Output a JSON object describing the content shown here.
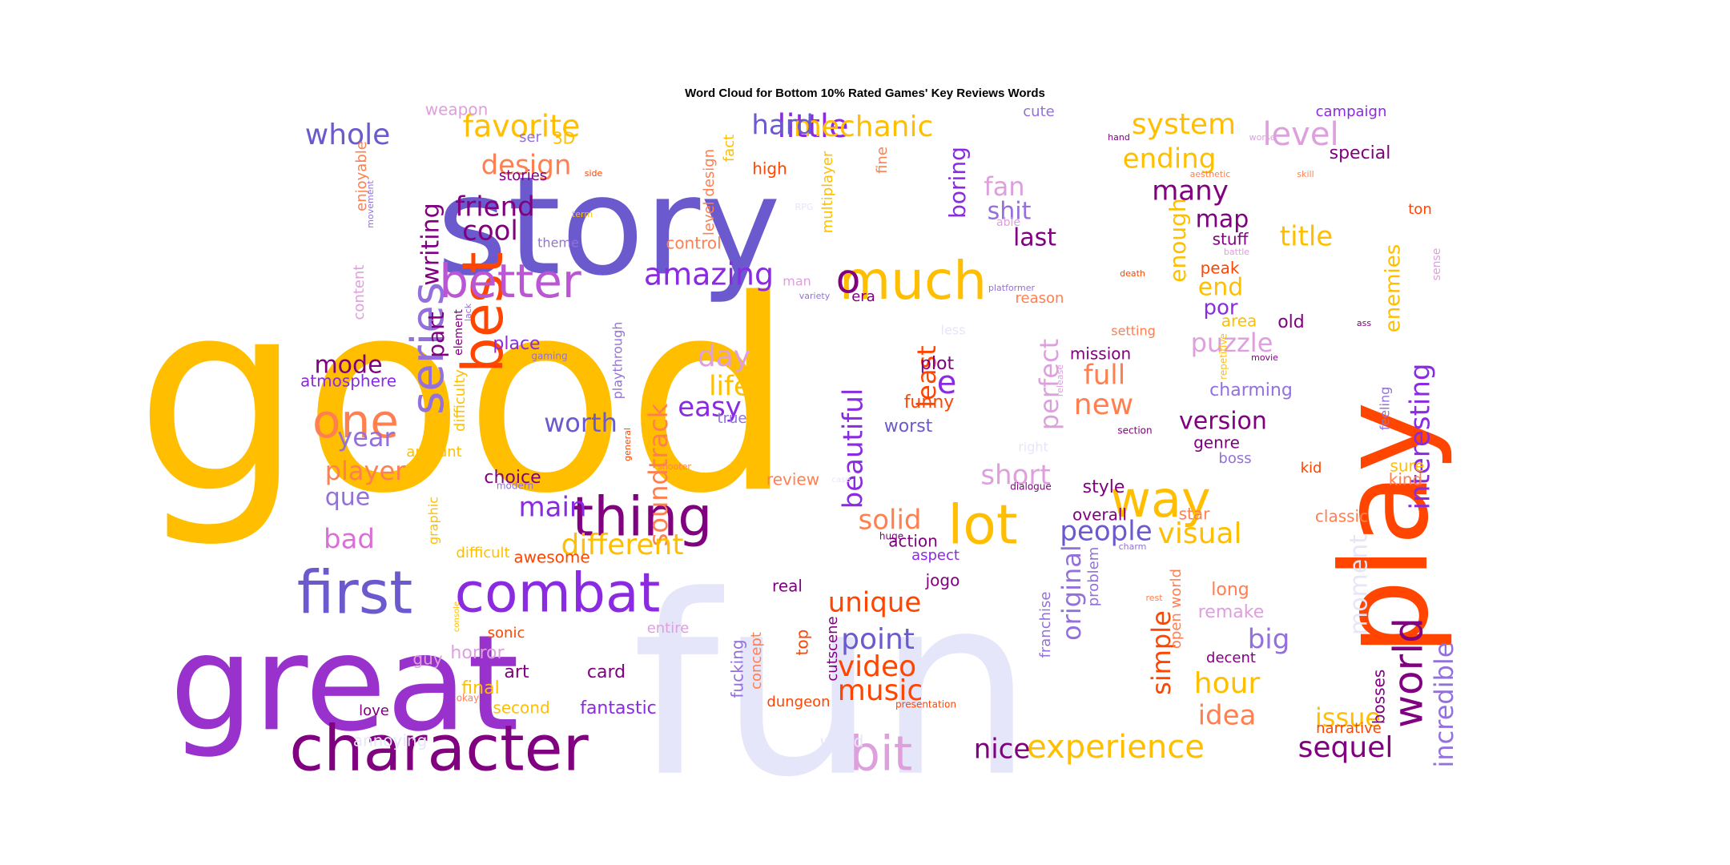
{
  "chart_data": {
    "type": "wordcloud",
    "title": "Word Cloud for Bottom 10% Rated Games' Key Reviews Words",
    "palette": [
      "#FFBF00",
      "#6A5ACD",
      "#FF4500",
      "#8A2BE2",
      "#800080",
      "#DDA0DD",
      "#E6E6FA",
      "#FF7F50"
    ],
    "words": [
      {
        "text": "good",
        "weight": 100,
        "color": "#FFBF00"
      },
      {
        "text": "fun",
        "weight": 92,
        "color": "#E6E6FA"
      },
      {
        "text": "story",
        "weight": 70,
        "color": "#6A5ACD"
      },
      {
        "text": "great",
        "weight": 63,
        "color": "#9932CC"
      },
      {
        "text": "play",
        "weight": 55,
        "color": "#FF4500"
      },
      {
        "text": "character",
        "weight": 34,
        "color": "#800080"
      },
      {
        "text": "best",
        "weight": 28,
        "color": "#FF4500"
      },
      {
        "text": "first",
        "weight": 30,
        "color": "#6A5ACD"
      },
      {
        "text": "combat",
        "weight": 28,
        "color": "#8A2BE2"
      },
      {
        "text": "thing",
        "weight": 27,
        "color": "#800080"
      },
      {
        "text": "much",
        "weight": 27,
        "color": "#FFBF00"
      },
      {
        "text": "lot",
        "weight": 27,
        "color": "#FFBF00"
      },
      {
        "text": "way",
        "weight": 25,
        "color": "#FFBF00"
      },
      {
        "text": "better",
        "weight": 24,
        "color": "#BA55D3"
      },
      {
        "text": "bit",
        "weight": 24,
        "color": "#DDA0DD"
      },
      {
        "text": "series",
        "weight": 23,
        "color": "#9370DB"
      },
      {
        "text": "one",
        "weight": 23,
        "color": "#FF7F50"
      },
      {
        "text": "world",
        "weight": 21,
        "color": "#800080"
      },
      {
        "text": "o",
        "weight": 18,
        "color": "#800080"
      },
      {
        "text": "experience",
        "weight": 17,
        "color": "#FFBF00"
      },
      {
        "text": "amazing",
        "weight": 15,
        "color": "#8A2BE2"
      },
      {
        "text": "little",
        "weight": 15,
        "color": "#8A2BE2"
      },
      {
        "text": "mechanic",
        "weight": 14,
        "color": "#FFBF00"
      },
      {
        "text": "favorite",
        "weight": 14,
        "color": "#FFBF00"
      },
      {
        "text": "soundtrack",
        "weight": 14,
        "color": "#FF7F50"
      },
      {
        "text": "beautiful",
        "weight": 14,
        "color": "#8A2BE2"
      },
      {
        "text": "interesting",
        "weight": 14,
        "color": "#8A2BE2"
      },
      {
        "text": "incredible",
        "weight": 14,
        "color": "#9370DB"
      },
      {
        "text": "different",
        "weight": 13,
        "color": "#FFBF00"
      },
      {
        "text": "system",
        "weight": 13,
        "color": "#FFBF00"
      },
      {
        "text": "whole",
        "weight": 13,
        "color": "#6A5ACD"
      },
      {
        "text": "level",
        "weight": 13,
        "color": "#DDA0DD"
      },
      {
        "text": "sequel",
        "weight": 13,
        "color": "#800080"
      },
      {
        "text": "nice",
        "weight": 13,
        "color": "#800080"
      },
      {
        "text": "music",
        "weight": 13,
        "color": "#FF4500"
      },
      {
        "text": "video",
        "weight": 13,
        "color": "#FF4500"
      },
      {
        "text": "point",
        "weight": 13,
        "color": "#6A5ACD"
      },
      {
        "text": "unique",
        "weight": 13,
        "color": "#FF4500"
      },
      {
        "text": "solid",
        "weight": 13,
        "color": "#FF7F50"
      },
      {
        "text": "visual",
        "weight": 13,
        "color": "#FFBF00"
      },
      {
        "text": "people",
        "weight": 13,
        "color": "#6A5ACD"
      },
      {
        "text": "new",
        "weight": 13,
        "color": "#FF7F50"
      },
      {
        "text": "full",
        "weight": 13,
        "color": "#FF7F50"
      },
      {
        "text": "ending",
        "weight": 13,
        "color": "#FFBF00"
      },
      {
        "text": "many",
        "weight": 13,
        "color": "#800080"
      },
      {
        "text": "title",
        "weight": 13,
        "color": "#FFBF00"
      },
      {
        "text": "design",
        "weight": 12,
        "color": "#FF7F50"
      },
      {
        "text": "friend",
        "weight": 12,
        "color": "#800080"
      },
      {
        "text": "cool",
        "weight": 12,
        "color": "#800080"
      },
      {
        "text": "hard",
        "weight": 12,
        "color": "#6A5ACD"
      },
      {
        "text": "day",
        "weight": 12,
        "color": "#DDA0DD"
      },
      {
        "text": "life",
        "weight": 12,
        "color": "#FFBF00"
      },
      {
        "text": "easy",
        "weight": 12,
        "color": "#8A2BE2"
      },
      {
        "text": "e",
        "weight": 12,
        "color": "#8A2BE2"
      },
      {
        "text": "least",
        "weight": 12,
        "color": "#FF4500"
      },
      {
        "text": "perfect",
        "weight": 12,
        "color": "#DDA0DD"
      },
      {
        "text": "original",
        "weight": 12,
        "color": "#9370DB"
      },
      {
        "text": "short",
        "weight": 12,
        "color": "#DDA0DD"
      },
      {
        "text": "simple",
        "weight": 12,
        "color": "#FF4500"
      },
      {
        "text": "moment",
        "weight": 12,
        "color": "#E6E6FA"
      },
      {
        "text": "hour",
        "weight": 12,
        "color": "#FFBF00"
      },
      {
        "text": "idea",
        "weight": 12,
        "color": "#FF7F50"
      },
      {
        "text": "issue",
        "weight": 12,
        "color": "#FFBF00"
      },
      {
        "text": "big",
        "weight": 12,
        "color": "#9370DB"
      },
      {
        "text": "worth",
        "weight": 12,
        "color": "#6A5ACD"
      },
      {
        "text": "main",
        "weight": 12,
        "color": "#8A2BE2"
      },
      {
        "text": "bad",
        "weight": 12,
        "color": "#DA70D6"
      },
      {
        "text": "player",
        "weight": 12,
        "color": "#FF7F50"
      },
      {
        "text": "year",
        "weight": 12,
        "color": "#9370DB"
      },
      {
        "text": "que",
        "weight": 12,
        "color": "#9370DB"
      },
      {
        "text": "mode",
        "weight": 12,
        "color": "#800080"
      },
      {
        "text": "writing",
        "weight": 12,
        "color": "#800080"
      },
      {
        "text": "part",
        "weight": 12,
        "color": "#800080"
      },
      {
        "text": "fan",
        "weight": 12,
        "color": "#DDA0DD"
      },
      {
        "text": "shit",
        "weight": 12,
        "color": "#9370DB"
      },
      {
        "text": "last",
        "weight": 12,
        "color": "#800080"
      },
      {
        "text": "boring",
        "weight": 12,
        "color": "#8A2BE2"
      },
      {
        "text": "enough",
        "weight": 12,
        "color": "#FFBF00"
      },
      {
        "text": "map",
        "weight": 12,
        "color": "#800080"
      },
      {
        "text": "end",
        "weight": 12,
        "color": "#FFBF00"
      },
      {
        "text": "puzzle",
        "weight": 12,
        "color": "#DDA0DD"
      },
      {
        "text": "version",
        "weight": 12,
        "color": "#800080"
      },
      {
        "text": "enemies",
        "weight": 12,
        "color": "#FFBF00"
      },
      {
        "text": "fantastic",
        "weight": 10,
        "color": "#8A2BE2"
      },
      {
        "text": "awesome",
        "weight": 10,
        "color": "#FF4500"
      },
      {
        "text": "choice",
        "weight": 10,
        "color": "#800080"
      },
      {
        "text": "place",
        "weight": 10,
        "color": "#8A2BE2"
      },
      {
        "text": "atmosphere",
        "weight": 10,
        "color": "#8A2BE2"
      },
      {
        "text": "plot",
        "weight": 10,
        "color": "#800080"
      },
      {
        "text": "funny",
        "weight": 10,
        "color": "#FF4500"
      },
      {
        "text": "worst",
        "weight": 10,
        "color": "#6A5ACD"
      },
      {
        "text": "action",
        "weight": 10,
        "color": "#800080"
      },
      {
        "text": "aspect",
        "weight": 10,
        "color": "#8A2BE2"
      },
      {
        "text": "jogo",
        "weight": 10,
        "color": "#800080"
      },
      {
        "text": "overall",
        "weight": 10,
        "color": "#800080"
      },
      {
        "text": "style",
        "weight": 10,
        "color": "#800080"
      },
      {
        "text": "star",
        "weight": 10,
        "color": "#FF7F50"
      },
      {
        "text": "classic",
        "weight": 10,
        "color": "#FF7F50"
      },
      {
        "text": "mission",
        "weight": 10,
        "color": "#800080"
      },
      {
        "text": "charming",
        "weight": 10,
        "color": "#9370DB"
      },
      {
        "text": "genre",
        "weight": 10,
        "color": "#800080"
      },
      {
        "text": "por",
        "weight": 10,
        "color": "#8A2BE2"
      },
      {
        "text": "stuff",
        "weight": 10,
        "color": "#800080"
      },
      {
        "text": "peak",
        "weight": 10,
        "color": "#FF4500"
      },
      {
        "text": "area",
        "weight": 10,
        "color": "#FFBF00"
      },
      {
        "text": "old",
        "weight": 10,
        "color": "#800080"
      },
      {
        "text": "special",
        "weight": 10,
        "color": "#800080"
      },
      {
        "text": "long",
        "weight": 10,
        "color": "#FF7F50"
      },
      {
        "text": "remake",
        "weight": 10,
        "color": "#DDA0DD"
      },
      {
        "text": "decent",
        "weight": 10,
        "color": "#800080"
      },
      {
        "text": "bosses",
        "weight": 10,
        "color": "#800080"
      },
      {
        "text": "narrative",
        "weight": 10,
        "color": "#FF4500"
      },
      {
        "text": "sure",
        "weight": 10,
        "color": "#FFBF00"
      },
      {
        "text": "kind",
        "weight": 10,
        "color": "#FF7F50"
      },
      {
        "text": "era",
        "weight": 10,
        "color": "#800080"
      },
      {
        "text": "art",
        "weight": 10,
        "color": "#800080"
      },
      {
        "text": "card",
        "weight": 10,
        "color": "#800080"
      },
      {
        "text": "second",
        "weight": 10,
        "color": "#FFBF00"
      },
      {
        "text": "love",
        "weight": 10,
        "color": "#800080"
      },
      {
        "text": "horror",
        "weight": 10,
        "color": "#DDA0DD"
      },
      {
        "text": "guy",
        "weight": 10,
        "color": "#DDA0DD"
      },
      {
        "text": "final",
        "weight": 10,
        "color": "#FFBF00"
      },
      {
        "text": "sonic",
        "weight": 10,
        "color": "#FF4500"
      },
      {
        "text": "real",
        "weight": 10,
        "color": "#800080"
      },
      {
        "text": "franchise",
        "weight": 10,
        "color": "#9370DB"
      },
      {
        "text": "problem",
        "weight": 10,
        "color": "#9370DB"
      },
      {
        "text": "open world",
        "weight": 10,
        "color": "#FF7F50"
      },
      {
        "text": "concept",
        "weight": 10,
        "color": "#FF7F50"
      },
      {
        "text": "top",
        "weight": 10,
        "color": "#FF4500"
      },
      {
        "text": "fucking",
        "weight": 10,
        "color": "#9370DB"
      },
      {
        "text": "dungeon",
        "weight": 10,
        "color": "#FF4500"
      },
      {
        "text": "cutscene",
        "weight": 10,
        "color": "#800080"
      },
      {
        "text": "review",
        "weight": 10,
        "color": "#FF7F50"
      },
      {
        "text": "control",
        "weight": 10,
        "color": "#FF7F50"
      },
      {
        "text": "high",
        "weight": 10,
        "color": "#FF4500"
      },
      {
        "text": "multiplayer",
        "weight": 10,
        "color": "#FFBF00"
      },
      {
        "text": "fine",
        "weight": 10,
        "color": "#FF7F50"
      },
      {
        "text": "level design",
        "weight": 10,
        "color": "#FF7F50"
      },
      {
        "text": "fact",
        "weight": 10,
        "color": "#FFBF00"
      },
      {
        "text": "weapon",
        "weight": 10,
        "color": "#DDA0DD"
      },
      {
        "text": "3D",
        "weight": 10,
        "color": "#FFBF00"
      },
      {
        "text": "ser",
        "weight": 10,
        "color": "#9370DB"
      },
      {
        "text": "stories",
        "weight": 10,
        "color": "#800080"
      },
      {
        "text": "enjoyable",
        "weight": 10,
        "color": "#FF7F50"
      },
      {
        "text": "content",
        "weight": 10,
        "color": "#DDA0DD"
      },
      {
        "text": "amount",
        "weight": 10,
        "color": "#FFBF00"
      },
      {
        "text": "graphic",
        "weight": 10,
        "color": "#FFBF00"
      },
      {
        "text": "difficult",
        "weight": 10,
        "color": "#FFBF00"
      },
      {
        "text": "difficulty",
        "weight": 10,
        "color": "#FFBF00"
      },
      {
        "text": "playthrough",
        "weight": 10,
        "color": "#9370DB"
      },
      {
        "text": "annoying",
        "weight": 10,
        "color": "#E6E6FA"
      },
      {
        "text": "weird",
        "weight": 10,
        "color": "#E6E6FA"
      },
      {
        "text": "cute",
        "weight": 10,
        "color": "#9370DB"
      },
      {
        "text": "campaign",
        "weight": 10,
        "color": "#8A2BE2"
      },
      {
        "text": "feeling",
        "weight": 10,
        "color": "#9370DB"
      },
      {
        "text": "kid",
        "weight": 10,
        "color": "#FF4500"
      },
      {
        "text": "boss",
        "weight": 10,
        "color": "#9370DB"
      },
      {
        "text": "reason",
        "weight": 10,
        "color": "#FF7F50"
      },
      {
        "text": "theme",
        "weight": 10,
        "color": "#9370DB"
      },
      {
        "text": "true",
        "weight": 10,
        "color": "#9370DB"
      },
      {
        "text": "entire",
        "weight": 10,
        "color": "#DDA0DD"
      },
      {
        "text": "setting",
        "weight": 10,
        "color": "#FF7F50"
      },
      {
        "text": "man",
        "weight": 10,
        "color": "#DDA0DD"
      },
      {
        "text": "able",
        "weight": 8,
        "color": "#DDA0DD"
      },
      {
        "text": "element",
        "weight": 8,
        "color": "#800080"
      },
      {
        "text": "okay",
        "weight": 8,
        "color": "#FF7F50"
      },
      {
        "text": "presentation",
        "weight": 8,
        "color": "#FF4500"
      },
      {
        "text": "dialogue",
        "weight": 8,
        "color": "#800080"
      },
      {
        "text": "section",
        "weight": 8,
        "color": "#800080"
      },
      {
        "text": "huge",
        "weight": 8,
        "color": "#800080"
      },
      {
        "text": "gaming",
        "weight": 8,
        "color": "#9370DB"
      },
      {
        "text": "modern",
        "weight": 8,
        "color": "#9370DB"
      },
      {
        "text": "general",
        "weight": 8,
        "color": "#FF4500"
      },
      {
        "text": "shooter",
        "weight": 8,
        "color": "#FF7F50"
      },
      {
        "text": "lack",
        "weight": 8,
        "color": "#9370DB"
      },
      {
        "text": "movement",
        "weight": 8,
        "color": "#9370DB"
      },
      {
        "text": "side",
        "weight": 8,
        "color": "#FF4500"
      },
      {
        "text": "term",
        "weight": 8,
        "color": "#FFBF00"
      },
      {
        "text": "hand",
        "weight": 8,
        "color": "#800080"
      },
      {
        "text": "worse",
        "weight": 8,
        "color": "#DDA0DD"
      },
      {
        "text": "aesthetic",
        "weight": 8,
        "color": "#FF7F50"
      },
      {
        "text": "skill",
        "weight": 8,
        "color": "#FF7F50"
      },
      {
        "text": "ton",
        "weight": 10,
        "color": "#FF4500"
      },
      {
        "text": "battle",
        "weight": 8,
        "color": "#DDA0DD"
      },
      {
        "text": "death",
        "weight": 8,
        "color": "#FF4500"
      },
      {
        "text": "platformer",
        "weight": 8,
        "color": "#9370DB"
      },
      {
        "text": "variety",
        "weight": 8,
        "color": "#9370DB"
      },
      {
        "text": "release",
        "weight": 8,
        "color": "#DDA0DD"
      },
      {
        "text": "repetitive",
        "weight": 8,
        "color": "#FFBF00"
      },
      {
        "text": "movie",
        "weight": 8,
        "color": "#800080"
      },
      {
        "text": "ass",
        "weight": 8,
        "color": "#800080"
      },
      {
        "text": "sense",
        "weight": 8,
        "color": "#DDA0DD"
      },
      {
        "text": "less",
        "weight": 10,
        "color": "#E6E6FA"
      },
      {
        "text": "right",
        "weight": 10,
        "color": "#E6E6FA"
      },
      {
        "text": "charm",
        "weight": 8,
        "color": "#9370DB"
      },
      {
        "text": "rest",
        "weight": 8,
        "color": "#FF7F50"
      },
      {
        "text": "console",
        "weight": 8,
        "color": "#FFBF00"
      },
      {
        "text": "RPG",
        "weight": 8,
        "color": "#E6E6FA"
      },
      {
        "text": "case",
        "weight": 8,
        "color": "#E6E6FA"
      }
    ]
  }
}
